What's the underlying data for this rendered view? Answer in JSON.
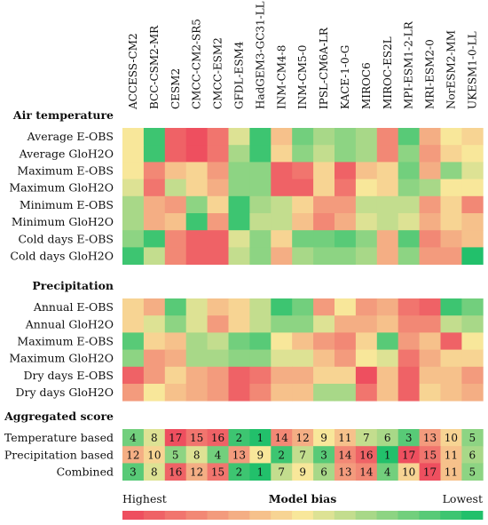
{
  "chart_data": {
    "type": "heatmap",
    "columns": [
      "ACCESS-CM2",
      "BCC-CSM2-MR",
      "CESM2",
      "CMCC-CM2-SR5",
      "CMCC-ESM2",
      "GFDL-ESM4",
      "HadGEM3-GC31-LL",
      "INM-CM4-8",
      "INM-CM5-0",
      "IPSL-CM6A-LR",
      "KACE-1-0-G",
      "MIROC6",
      "MIROC-ES2L",
      "MPI-ESM1-2-LR",
      "MRI-ESM2-0",
      "NorESM2-MM",
      "UKESM1-0-LL"
    ],
    "color_scale": {
      "min_label": "Highest",
      "center_label": "Model bias",
      "max_label": "Lowest",
      "low_bias_color": "#22c06b",
      "mid_color": "#f8e79a",
      "high_bias_color": "#ee4f5f",
      "scale_note": "cell value = rank 1..17 (1 = lowest bias, green; 17 = highest bias, red)"
    },
    "sections": [
      {
        "title": "Air temperature",
        "rows": [
          {
            "label": "Average E-OBS",
            "ranks": [
              9,
              2,
              16,
              17,
              15,
              8,
              2,
              11,
              4,
              6,
              5,
              6,
              14,
              3,
              12,
              9,
              10
            ]
          },
          {
            "label": "Average GloH2O",
            "ranks": [
              9,
              2,
              16,
              17,
              15,
              6,
              2,
              10,
              5,
              7,
              5,
              6,
              14,
              5,
              13,
              10,
              9
            ]
          },
          {
            "label": "Maximum E-OBS",
            "ranks": [
              9,
              14,
              11,
              10,
              13,
              5,
              5,
              16,
              15,
              10,
              16,
              11,
              10,
              4,
              12,
              5,
              8
            ]
          },
          {
            "label": "Maximum GloH2O",
            "ranks": [
              8,
              15,
              7,
              10,
              12,
              5,
              5,
              16,
              16,
              10,
              15,
              9,
              10,
              5,
              6,
              9,
              9
            ]
          },
          {
            "label": "Minimum E-OBS",
            "ranks": [
              6,
              12,
              13,
              5,
              10,
              2,
              6,
              7,
              10,
              13,
              13,
              7,
              7,
              7,
              13,
              10,
              14
            ]
          },
          {
            "label": "Minimum GloH2O",
            "ranks": [
              6,
              12,
              11,
              2,
              13,
              2,
              7,
              7,
              11,
              14,
              12,
              8,
              7,
              8,
              12,
              10,
              11
            ]
          },
          {
            "label": "Cold days E-OBS",
            "ranks": [
              5,
              2,
              14,
              16,
              16,
              8,
              5,
              10,
              4,
              4,
              3,
              5,
              12,
              3,
              14,
              12,
              11
            ]
          },
          {
            "label": "Cold days GloH2O",
            "ranks": [
              2,
              7,
              14,
              16,
              16,
              7,
              5,
              12,
              6,
              5,
              5,
              6,
              12,
              5,
              13,
              13,
              1
            ]
          }
        ]
      },
      {
        "title": "Precipitation",
        "rows": [
          {
            "label": "Annual E-OBS",
            "ranks": [
              10,
              12,
              3,
              8,
              11,
              10,
              7,
              2,
              4,
              13,
              9,
              13,
              12,
              15,
              16,
              2,
              4
            ]
          },
          {
            "label": "Annual GloH2O",
            "ranks": [
              10,
              8,
              5,
              8,
              13,
              10,
              7,
              5,
              5,
              8,
              12,
              12,
              11,
              14,
              14,
              7,
              6
            ]
          },
          {
            "label": "Maximum E-OBS",
            "ranks": [
              3,
              10,
              11,
              6,
              7,
              4,
              3,
              9,
              11,
              13,
              14,
              10,
              3,
              13,
              11,
              16,
              9
            ]
          },
          {
            "label": "Maximum GloH2O",
            "ranks": [
              5,
              13,
              12,
              6,
              6,
              5,
              5,
              8,
              8,
              11,
              13,
              9,
              8,
              15,
              12,
              10,
              10
            ]
          },
          {
            "label": "Dry days E-OBS",
            "ranks": [
              16,
              13,
              10,
              12,
              13,
              16,
              15,
              12,
              12,
              10,
              10,
              17,
              11,
              16,
              11,
              11,
              13
            ]
          },
          {
            "label": "Dry days GloH2O",
            "ranks": [
              13,
              9,
              11,
              12,
              13,
              16,
              14,
              11,
              11,
              6,
              6,
              15,
              11,
              16,
              10,
              11,
              12
            ]
          }
        ]
      },
      {
        "title": "Aggregated score",
        "rows": [
          {
            "label": "Temperature based",
            "ranks": [
              4,
              8,
              17,
              15,
              16,
              2,
              1,
              14,
              12,
              9,
              11,
              7,
              6,
              3,
              13,
              10,
              5
            ]
          },
          {
            "label": "Precipitation based",
            "ranks": [
              12,
              10,
              5,
              8,
              4,
              13,
              9,
              2,
              7,
              3,
              14,
              16,
              1,
              17,
              15,
              11,
              6
            ]
          },
          {
            "label": "Combined",
            "ranks": [
              3,
              8,
              16,
              12,
              15,
              2,
              1,
              7,
              9,
              6,
              13,
              14,
              4,
              10,
              17,
              11,
              5
            ]
          }
        ],
        "show_values": true
      }
    ]
  }
}
